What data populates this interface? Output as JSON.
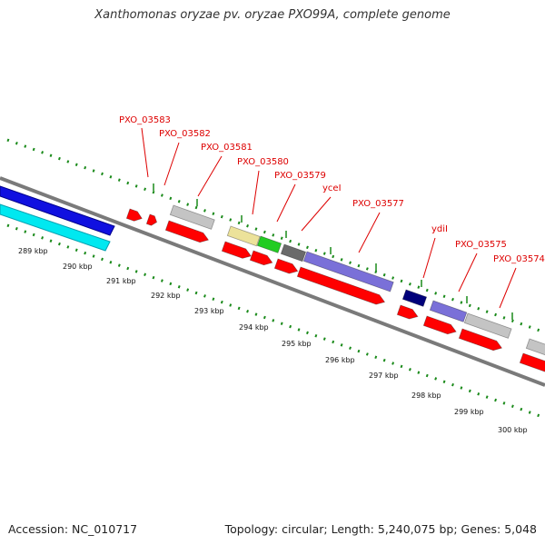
{
  "title": "Xanthomonas oryzae pv. oryzae PXO99A, complete genome",
  "footer": {
    "accession": "Accession: NC_010717",
    "summary": "Topology: circular; Length: 5,240,075 bp; Genes: 5,048"
  },
  "gene_labels": [
    "PXO_03583",
    "PXO_03582",
    "PXO_03581",
    "PXO_03580",
    "PXO_03579",
    "yceI",
    "PXO_03577",
    "ydiI",
    "PXO_03575",
    "PXO_03574"
  ],
  "ticks": [
    "289 kbp",
    "290 kbp",
    "291 kbp",
    "292 kbp",
    "293 kbp",
    "294 kbp",
    "295 kbp",
    "296 kbp",
    "297 kbp",
    "298 kbp",
    "299 kbp",
    "300 kbp"
  ],
  "colors": {
    "cds": "#ff0000",
    "gray_feature": "#c4c4c4",
    "backbone": "#7a7a7a",
    "blue_track": "#1010e0",
    "cyan_track": "#00e8f0",
    "tick_green": "#1a8a1a",
    "label_red": "#dd0000",
    "lavender": "#7a70d8",
    "navy": "#00007a",
    "green": "#22cc22",
    "khaki": "#ece29a",
    "dark_gray": "#6a6a6a"
  }
}
